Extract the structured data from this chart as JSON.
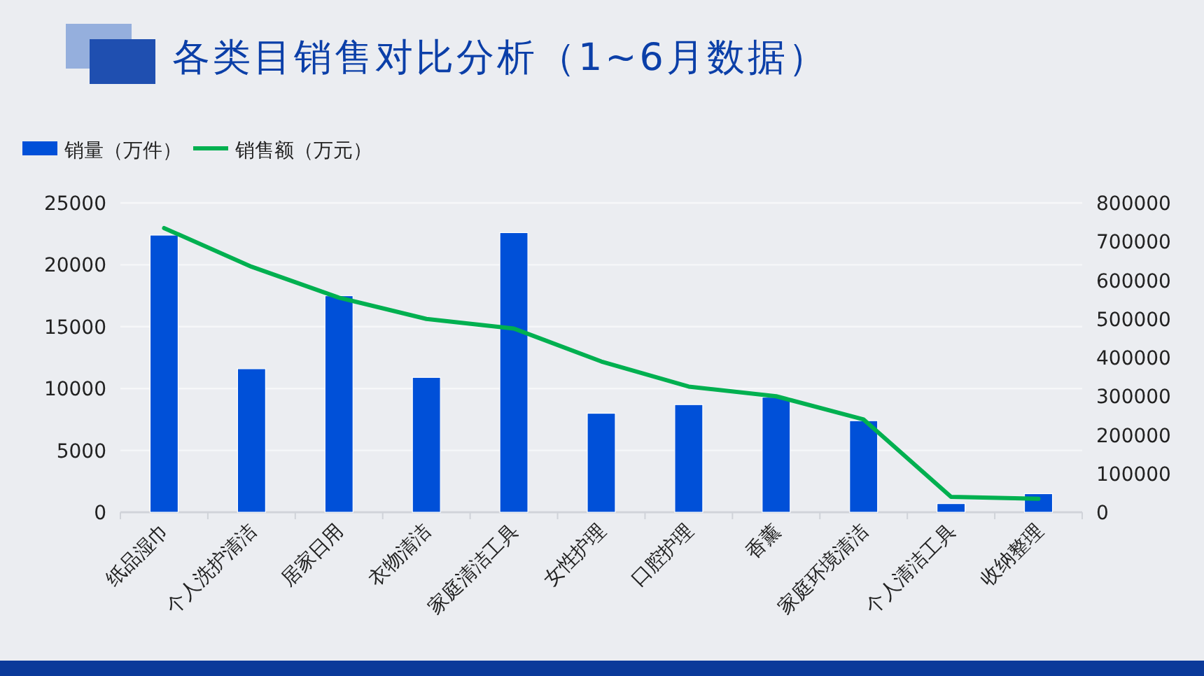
{
  "chart_data": {
    "type": "bar",
    "title": "各类目销售对比分析（1~6月数据）",
    "categories": [
      "纸品湿巾",
      "个人洗护清洁",
      "居家日用",
      "衣物清洁",
      "家庭清洁工具",
      "女性护理",
      "口腔护理",
      "香薰",
      "家庭环境清洁",
      "个人清洁工具",
      "收纳整理"
    ],
    "series": [
      {
        "name": "销量（万件）",
        "color": "#0050d8",
        "values": [
          22400,
          11600,
          17500,
          10900,
          22600,
          8000,
          8700,
          9300,
          7400,
          700,
          1500
        ]
      },
      {
        "name": "销售额（万元）",
        "type": "line",
        "axis": "y2",
        "color": "#00b050",
        "values": [
          735000,
          635000,
          555000,
          500000,
          475000,
          390000,
          325000,
          300000,
          240000,
          40000,
          35000
        ]
      }
    ],
    "ylim": [
      0,
      25000
    ],
    "yticks": [
      0,
      5000,
      10000,
      15000,
      20000,
      25000
    ],
    "y2lim": [
      0,
      800000
    ],
    "y2ticks": [
      0,
      100000,
      200000,
      300000,
      400000,
      500000,
      600000,
      700000,
      800000
    ],
    "grid": "y",
    "legend": "top left",
    "marker": "none"
  }
}
